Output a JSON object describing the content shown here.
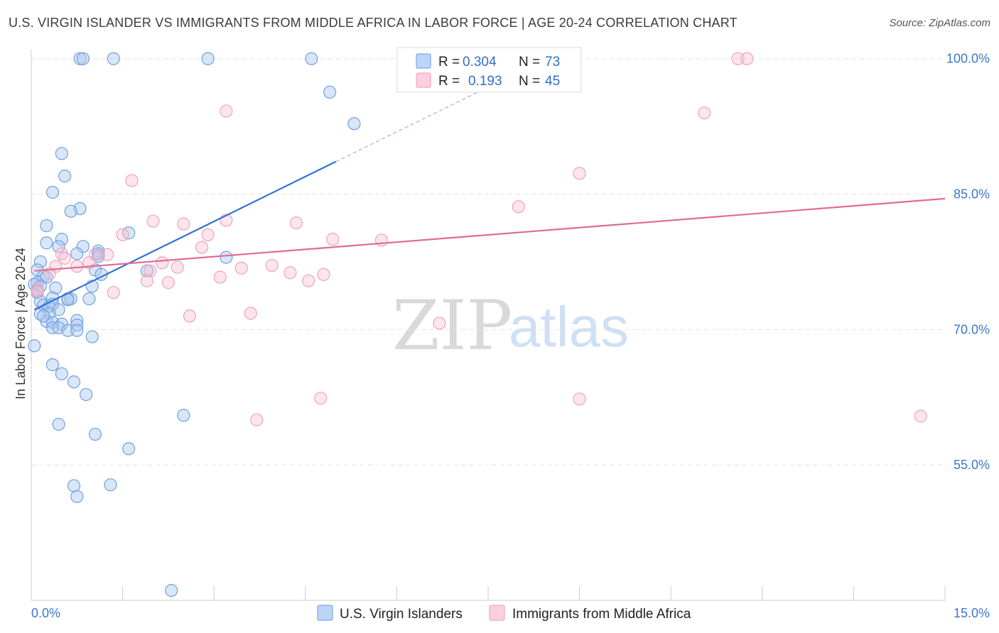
{
  "title": "U.S. VIRGIN ISLANDER VS IMMIGRANTS FROM MIDDLE AFRICA IN LABOR FORCE | AGE 20-24 CORRELATION CHART",
  "source": "Source: ZipAtlas.com",
  "watermark": {
    "part1": "ZIP",
    "part2": "atlas"
  },
  "legend_box": {
    "rows": [
      {
        "r_label": "R =",
        "r_value": "0.304",
        "n_label": "N =",
        "n_value": "73"
      },
      {
        "r_label": "R =",
        "r_value": "0.193",
        "n_label": "N =",
        "n_value": "45"
      }
    ]
  },
  "chart_data": {
    "type": "scatter",
    "title": "U.S. VIRGIN ISLANDER VS IMMIGRANTS FROM MIDDLE AFRICA IN LABOR FORCE | AGE 20-24 CORRELATION CHART",
    "xlabel": "",
    "ylabel": "In Labor Force | Age 20-24",
    "xlim": [
      0,
      15
    ],
    "ylim": [
      40,
      101
    ],
    "x_tick_labels": [
      "0.0%",
      "15.0%"
    ],
    "y_ticks": [
      55,
      70,
      85,
      100
    ],
    "y_tick_labels": [
      "55.0%",
      "70.0%",
      "85.0%",
      "100.0%"
    ],
    "grid": "horizontal dashed",
    "legend_position": "top-center and bottom",
    "colors": {
      "series1": "#7aaae8",
      "series1_line": "#2f74d0",
      "series2": "#f2a7bf",
      "series2_line": "#e06b95"
    },
    "series": [
      {
        "name": "U.S. Virgin Islanders",
        "R": 0.304,
        "N": 73,
        "trend": {
          "x0": 0.05,
          "y0": 72.2,
          "x1": 5.0,
          "y1": 88.6,
          "dashed_to_x": 8.0,
          "dashed_to_y": 98.5
        },
        "points": [
          [
            0.8,
            100
          ],
          [
            0.85,
            100
          ],
          [
            1.35,
            100
          ],
          [
            2.9,
            100
          ],
          [
            4.6,
            100
          ],
          [
            4.9,
            96.3
          ],
          [
            5.3,
            92.8
          ],
          [
            0.5,
            89.5
          ],
          [
            0.55,
            87
          ],
          [
            0.35,
            85.2
          ],
          [
            0.8,
            83.4
          ],
          [
            0.65,
            83.1
          ],
          [
            0.25,
            81.5
          ],
          [
            1.6,
            80.7
          ],
          [
            0.5,
            80
          ],
          [
            0.25,
            79.6
          ],
          [
            0.45,
            79.2
          ],
          [
            0.85,
            79.2
          ],
          [
            1.1,
            78.7
          ],
          [
            0.75,
            78.4
          ],
          [
            1.1,
            78.4
          ],
          [
            3.2,
            78
          ],
          [
            0.15,
            77.5
          ],
          [
            0.1,
            76.6
          ],
          [
            1.05,
            76.6
          ],
          [
            1.9,
            76.5
          ],
          [
            1.15,
            76.1
          ],
          [
            0.2,
            75.9
          ],
          [
            0.25,
            75.8
          ],
          [
            0.1,
            75.2
          ],
          [
            0.05,
            75
          ],
          [
            1.0,
            74.8
          ],
          [
            0.4,
            74.6
          ],
          [
            0.1,
            74.3
          ],
          [
            0.1,
            74.1
          ],
          [
            0.35,
            73.5
          ],
          [
            0.6,
            73.4
          ],
          [
            0.65,
            73.4
          ],
          [
            0.95,
            73.4
          ],
          [
            0.15,
            73.1
          ],
          [
            0.2,
            72.7
          ],
          [
            0.3,
            72.6
          ],
          [
            0.35,
            72.8
          ],
          [
            0.3,
            71.8
          ],
          [
            0.15,
            71.7
          ],
          [
            0.75,
            71
          ],
          [
            0.25,
            70.9
          ],
          [
            0.35,
            70.8
          ],
          [
            0.5,
            70.6
          ],
          [
            0.35,
            70.2
          ],
          [
            0.45,
            70.2
          ],
          [
            0.6,
            69.9
          ],
          [
            0.75,
            70.5
          ],
          [
            0.75,
            69.9
          ],
          [
            1.0,
            69.2
          ],
          [
            0.05,
            68.2
          ],
          [
            0.35,
            66.1
          ],
          [
            0.5,
            65.1
          ],
          [
            0.7,
            64.2
          ],
          [
            0.9,
            62.8
          ],
          [
            2.5,
            60.5
          ],
          [
            0.45,
            59.5
          ],
          [
            1.05,
            58.4
          ],
          [
            1.6,
            56.8
          ],
          [
            0.7,
            52.7
          ],
          [
            1.3,
            52.8
          ],
          [
            0.75,
            51.5
          ],
          [
            2.3,
            41.1
          ],
          [
            0.15,
            74.8
          ],
          [
            0.6,
            73.3
          ],
          [
            0.45,
            72.2
          ],
          [
            0.2,
            71.5
          ],
          [
            1.1,
            78.1
          ]
        ]
      },
      {
        "name": "Immigrants from Middle Africa",
        "R": 0.193,
        "N": 45,
        "trend": {
          "x0": 0.05,
          "y0": 76.5,
          "x1": 15.0,
          "y1": 84.5
        },
        "points": [
          [
            11.6,
            100
          ],
          [
            11.75,
            100
          ],
          [
            3.2,
            94.2
          ],
          [
            11.05,
            94
          ],
          [
            9.0,
            87.3
          ],
          [
            1.65,
            86.5
          ],
          [
            8.0,
            83.6
          ],
          [
            2.0,
            82
          ],
          [
            2.5,
            81.7
          ],
          [
            3.2,
            82.1
          ],
          [
            4.35,
            81.8
          ],
          [
            1.5,
            80.5
          ],
          [
            2.9,
            80.5
          ],
          [
            4.95,
            80
          ],
          [
            5.75,
            79.9
          ],
          [
            2.8,
            79.1
          ],
          [
            0.5,
            78.4
          ],
          [
            1.05,
            78.3
          ],
          [
            1.25,
            78.3
          ],
          [
            0.55,
            77.9
          ],
          [
            0.95,
            77.4
          ],
          [
            0.4,
            77
          ],
          [
            0.75,
            77
          ],
          [
            2.15,
            77.4
          ],
          [
            2.4,
            76.9
          ],
          [
            3.45,
            76.8
          ],
          [
            3.95,
            77.1
          ],
          [
            0.3,
            76.2
          ],
          [
            1.95,
            76.5
          ],
          [
            4.25,
            76.3
          ],
          [
            4.8,
            76.1
          ],
          [
            3.1,
            75.8
          ],
          [
            1.9,
            75.4
          ],
          [
            2.25,
            75.2
          ],
          [
            4.55,
            75.4
          ],
          [
            0.1,
            74.5
          ],
          [
            1.35,
            74.1
          ],
          [
            0.1,
            74.2
          ],
          [
            3.6,
            71.8
          ],
          [
            2.6,
            71.5
          ],
          [
            6.7,
            70.7
          ],
          [
            4.75,
            62.4
          ],
          [
            9.0,
            62.3
          ],
          [
            3.7,
            60
          ],
          [
            14.6,
            60.4
          ]
        ]
      }
    ]
  }
}
